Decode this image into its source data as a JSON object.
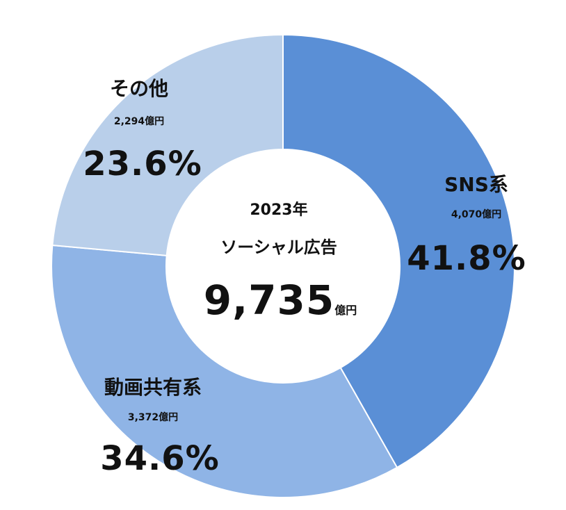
{
  "chart_data": {
    "type": "pie",
    "donut": true,
    "center": {
      "year": "2023年",
      "title": "ソーシャル広告",
      "total": "9,735",
      "total_unit": "億円"
    },
    "categories": [
      "SNS系",
      "動画共有系",
      "その他"
    ],
    "values": [
      4070,
      3372,
      2294
    ],
    "amount_labels": [
      "4,070億円",
      "3,372億円",
      "2,294億円"
    ],
    "percent_labels": [
      "41.8%",
      "34.6%",
      "23.6%"
    ],
    "colors": [
      "#5a8fd6",
      "#8fb4e6",
      "#b9cfea"
    ]
  }
}
